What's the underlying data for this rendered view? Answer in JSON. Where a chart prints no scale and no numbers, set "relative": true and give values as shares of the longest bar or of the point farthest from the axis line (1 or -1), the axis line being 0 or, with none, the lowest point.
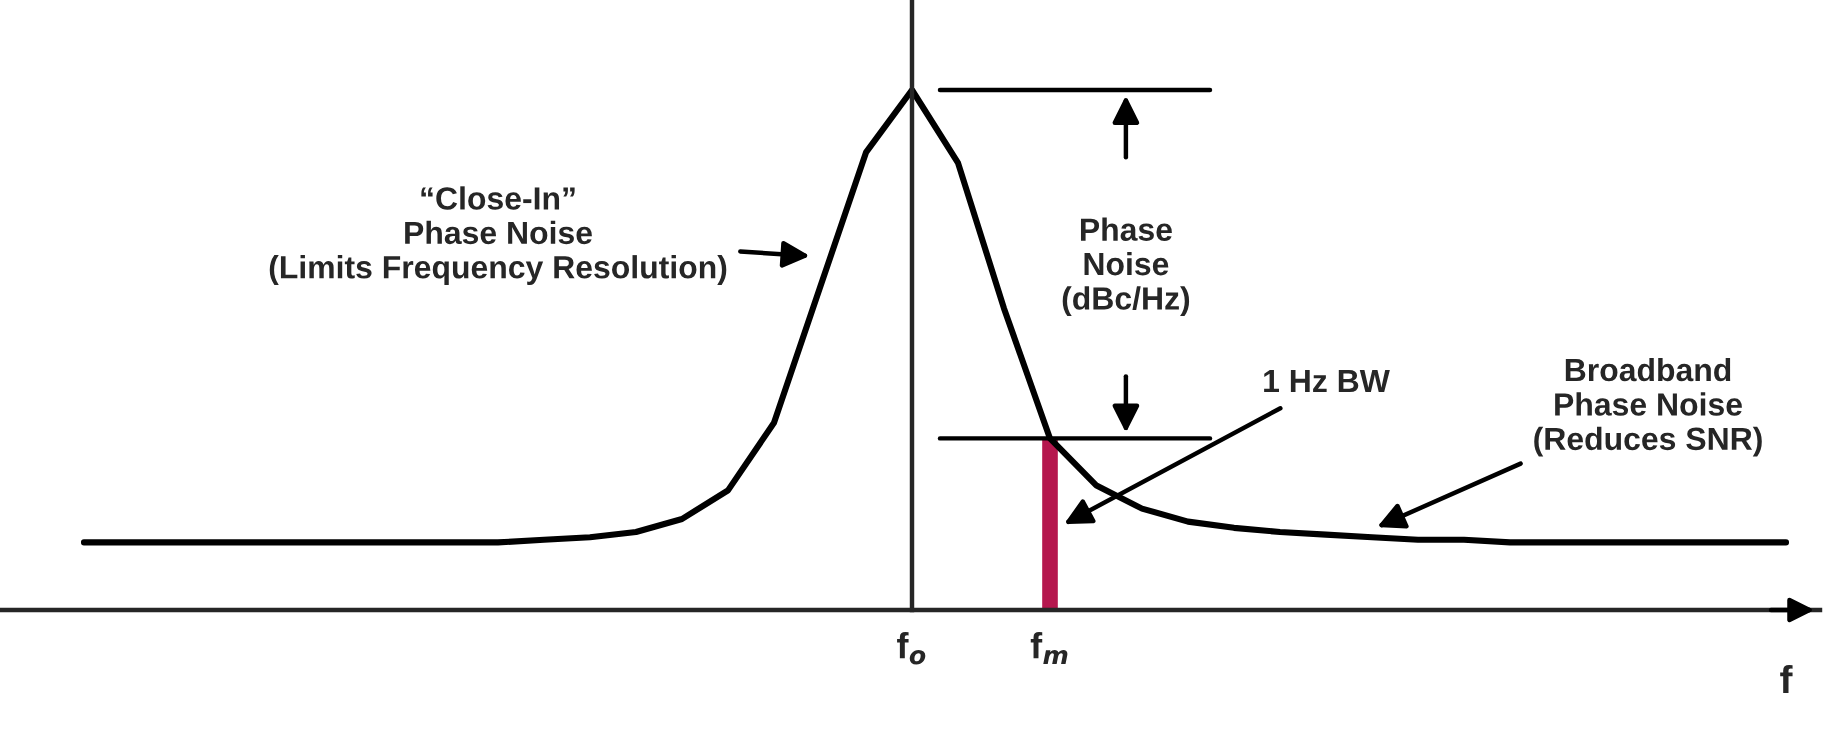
{
  "chart_data": {
    "type": "line",
    "relative": true,
    "xlabel": "f",
    "legend": false,
    "marker": "none",
    "line_style": "solid",
    "categories": [
      null,
      null,
      null,
      null,
      null,
      null,
      null,
      null,
      null,
      null,
      null,
      null,
      null,
      null,
      null,
      null,
      null,
      null,
      "f$_{o}$",
      null,
      null,
      "f$_{m}$",
      null,
      null,
      null,
      null,
      null,
      null,
      null,
      null,
      null,
      null,
      null,
      null,
      null,
      null,
      null,
      null
    ],
    "series": [
      {
        "color": "#000000",
        "values": [
          0.13,
          0.13,
          0.13,
          0.13,
          0.13,
          0.13,
          0.13,
          0.13,
          0.13,
          0.13,
          0.135,
          0.14,
          0.15,
          0.175,
          0.23,
          0.36,
          0.62,
          0.88,
          1.0,
          0.86,
          0.58,
          0.33,
          0.24,
          0.195,
          0.17,
          0.158,
          0.15,
          0.145,
          0.14,
          0.135,
          0.135,
          0.13,
          0.13,
          0.13,
          0.13,
          0.13,
          0.13,
          0.13
        ]
      },
      {
        "type": "bar",
        "color": "#b5174e",
        "values": [
          null,
          null,
          null,
          null,
          null,
          null,
          null,
          null,
          null,
          null,
          null,
          null,
          null,
          null,
          null,
          null,
          null,
          null,
          null,
          null,
          null,
          0.33,
          null,
          null,
          null,
          null,
          null,
          null,
          null,
          null,
          null,
          null,
          null,
          null,
          null,
          null,
          null,
          null
        ]
      }
    ],
    "ref_lines": [
      {
        "axis": "y",
        "value": 1
      },
      {
        "axis": "y",
        "value": 0.33
      }
    ],
    "annotations": [
      "“Close-In”\nPhase Noise\n(Limits Frequency Resolution)",
      "Phase\nNoise\n(dBc/Hz)",
      "1 Hz BW",
      "Broadband\nPhase Noise\n(Reduces SNR)"
    ]
  }
}
